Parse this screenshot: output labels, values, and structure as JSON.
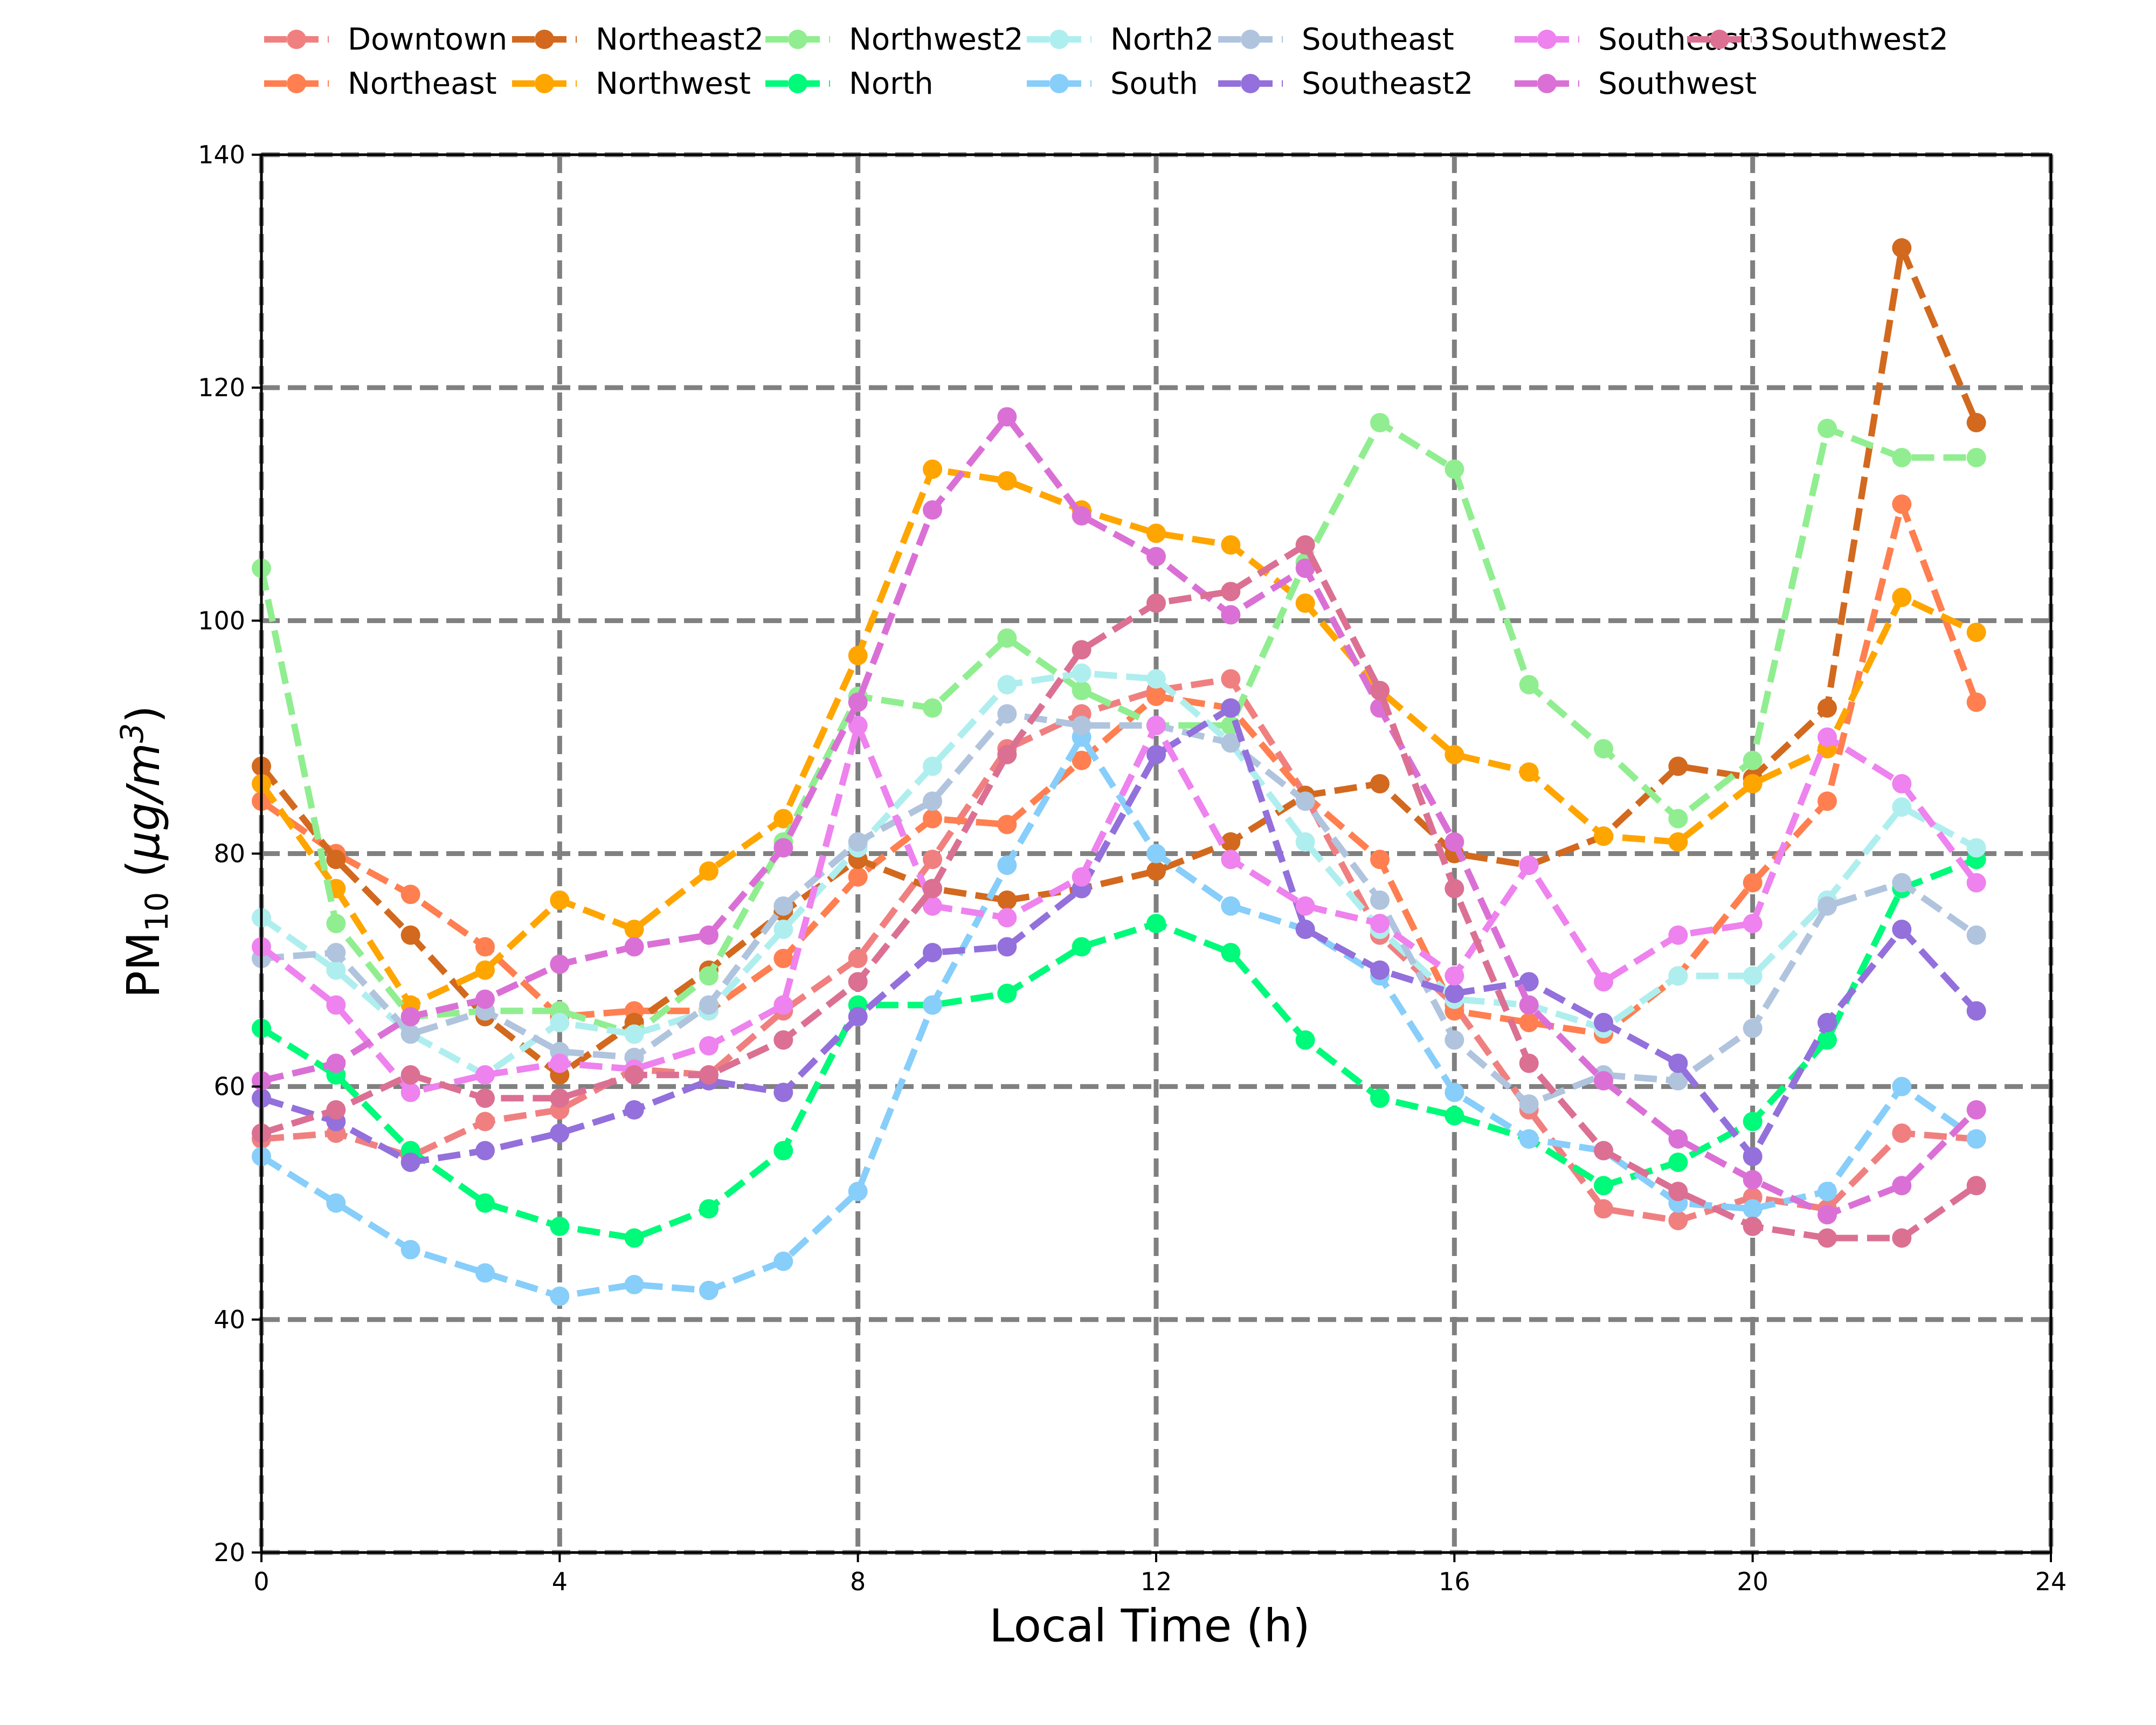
{
  "chart_data": {
    "type": "line",
    "title": "",
    "xlabel": "Local Time (h)",
    "ylabel": {
      "main": "PM",
      "sub": "10",
      "unit_open": " (",
      "mu": "μg/m",
      "sup": "3",
      "unit_close": ")"
    },
    "xlim": [
      0,
      24
    ],
    "ylim": [
      20,
      140
    ],
    "xticks": [
      0,
      4,
      8,
      12,
      16,
      20,
      24
    ],
    "yticks": [
      20,
      40,
      60,
      80,
      100,
      120,
      140
    ],
    "grid": true,
    "grid_style": "dashed",
    "legend_position": "top, outside plot, 8 columns",
    "x": [
      0,
      1,
      2,
      3,
      4,
      5,
      6,
      7,
      8,
      9,
      10,
      11,
      12,
      13,
      14,
      15,
      16,
      17,
      18,
      19,
      20,
      21,
      22,
      23
    ],
    "series": [
      {
        "name": "Downtown",
        "color": "#F08080",
        "values": [
          55.5,
          56,
          54,
          57,
          58,
          61.5,
          61,
          66.5,
          71,
          79.5,
          89,
          92,
          94,
          95,
          85,
          73,
          67,
          58,
          49.5,
          48.5,
          50.5,
          49.5,
          56,
          55.5
        ]
      },
      {
        "name": "Northeast",
        "color": "#FF7F50",
        "values": [
          84.5,
          80,
          76.5,
          72,
          66,
          66.5,
          66.5,
          71,
          78,
          83,
          82.5,
          88,
          93.5,
          92.5,
          85,
          79.5,
          66.5,
          65.5,
          64.5,
          69.5,
          77.5,
          84.5,
          110,
          93
        ]
      },
      {
        "name": "Northeast2",
        "color": "#D2691E",
        "values": [
          87.5,
          79.5,
          73,
          66,
          61,
          65.5,
          70,
          75,
          79.5,
          77,
          76,
          77,
          78.5,
          81,
          85,
          86,
          80,
          79,
          81.5,
          87.5,
          86.5,
          92.5,
          132,
          117
        ]
      },
      {
        "name": "Northwest",
        "color": "#FFA500",
        "values": [
          86,
          77,
          67,
          70,
          76,
          73.5,
          78.5,
          83,
          97,
          113,
          112,
          109.5,
          107.5,
          106.5,
          101.5,
          94,
          88.5,
          87,
          81.5,
          81,
          86,
          89,
          102,
          99
        ]
      },
      {
        "name": "Northwest2",
        "color": "#90EE90",
        "values": [
          104.5,
          74,
          66,
          66.5,
          66.5,
          64.5,
          69.5,
          81,
          93.5,
          92.5,
          98.5,
          94,
          91,
          91,
          105,
          117,
          113,
          94.5,
          89,
          83,
          88,
          116.5,
          114,
          114
        ]
      },
      {
        "name": "North",
        "color": "#00FA7A",
        "values": [
          65,
          61,
          54.5,
          50,
          48,
          47,
          49.5,
          54.5,
          67,
          67,
          68,
          72,
          74,
          71.5,
          64,
          59,
          57.5,
          55.5,
          51.5,
          53.5,
          57,
          64,
          77,
          79.5
        ]
      },
      {
        "name": "North2",
        "color": "#AFEEEE",
        "values": [
          74.5,
          70,
          64.5,
          61,
          65.5,
          64.5,
          66.5,
          73.5,
          80.5,
          87.5,
          94.5,
          95.5,
          95,
          89.5,
          81,
          73.5,
          67.5,
          67,
          65,
          69.5,
          69.5,
          76,
          84,
          80.5
        ]
      },
      {
        "name": "South",
        "color": "#87CEFA",
        "values": [
          54,
          50,
          46,
          44,
          42,
          43,
          42.5,
          45,
          51,
          67,
          79,
          90,
          80,
          75.5,
          73.5,
          69.5,
          59.5,
          55.5,
          54.5,
          50,
          49.5,
          51,
          60,
          55.5
        ]
      },
      {
        "name": "Southeast",
        "color": "#B0C4DE",
        "values": [
          71,
          71.5,
          64.5,
          66.5,
          63,
          62.5,
          67,
          75.5,
          81,
          84.5,
          92,
          91,
          91,
          89.5,
          84.5,
          76,
          64,
          58.5,
          61,
          60.5,
          65,
          75.5,
          77.5,
          73
        ]
      },
      {
        "name": "Southeast2",
        "color": "#9370DB",
        "values": [
          59,
          57,
          53.5,
          54.5,
          56,
          58,
          60.5,
          59.5,
          66,
          71.5,
          72,
          77,
          88.5,
          92.5,
          73.5,
          70,
          68,
          69,
          65.5,
          62,
          54,
          65.5,
          73.5,
          66.5
        ]
      },
      {
        "name": "Southeast3",
        "color": "#EE82EE",
        "values": [
          72,
          67,
          59.5,
          61,
          62,
          61.5,
          63.5,
          67,
          91,
          75.5,
          74.5,
          78,
          91,
          79.5,
          75.5,
          74,
          69.5,
          79,
          69,
          73,
          74,
          90,
          86,
          77.5
        ]
      },
      {
        "name": "Southwest",
        "color": "#DA70D6",
        "values": [
          60.5,
          62,
          66,
          67.5,
          70.5,
          72,
          73,
          80.5,
          93,
          109.5,
          117.5,
          109,
          105.5,
          100.5,
          104.5,
          92.5,
          81,
          67,
          60.5,
          55.5,
          52,
          49,
          51.5,
          58
        ]
      },
      {
        "name": "Southwest2",
        "color": "#DB7093",
        "values": [
          56,
          58,
          61,
          59,
          59,
          61,
          61,
          64,
          69,
          77,
          88.5,
          97.5,
          101.5,
          102.5,
          106.5,
          94,
          77,
          62,
          54.5,
          51,
          48,
          47,
          47,
          51.5
        ]
      }
    ]
  }
}
